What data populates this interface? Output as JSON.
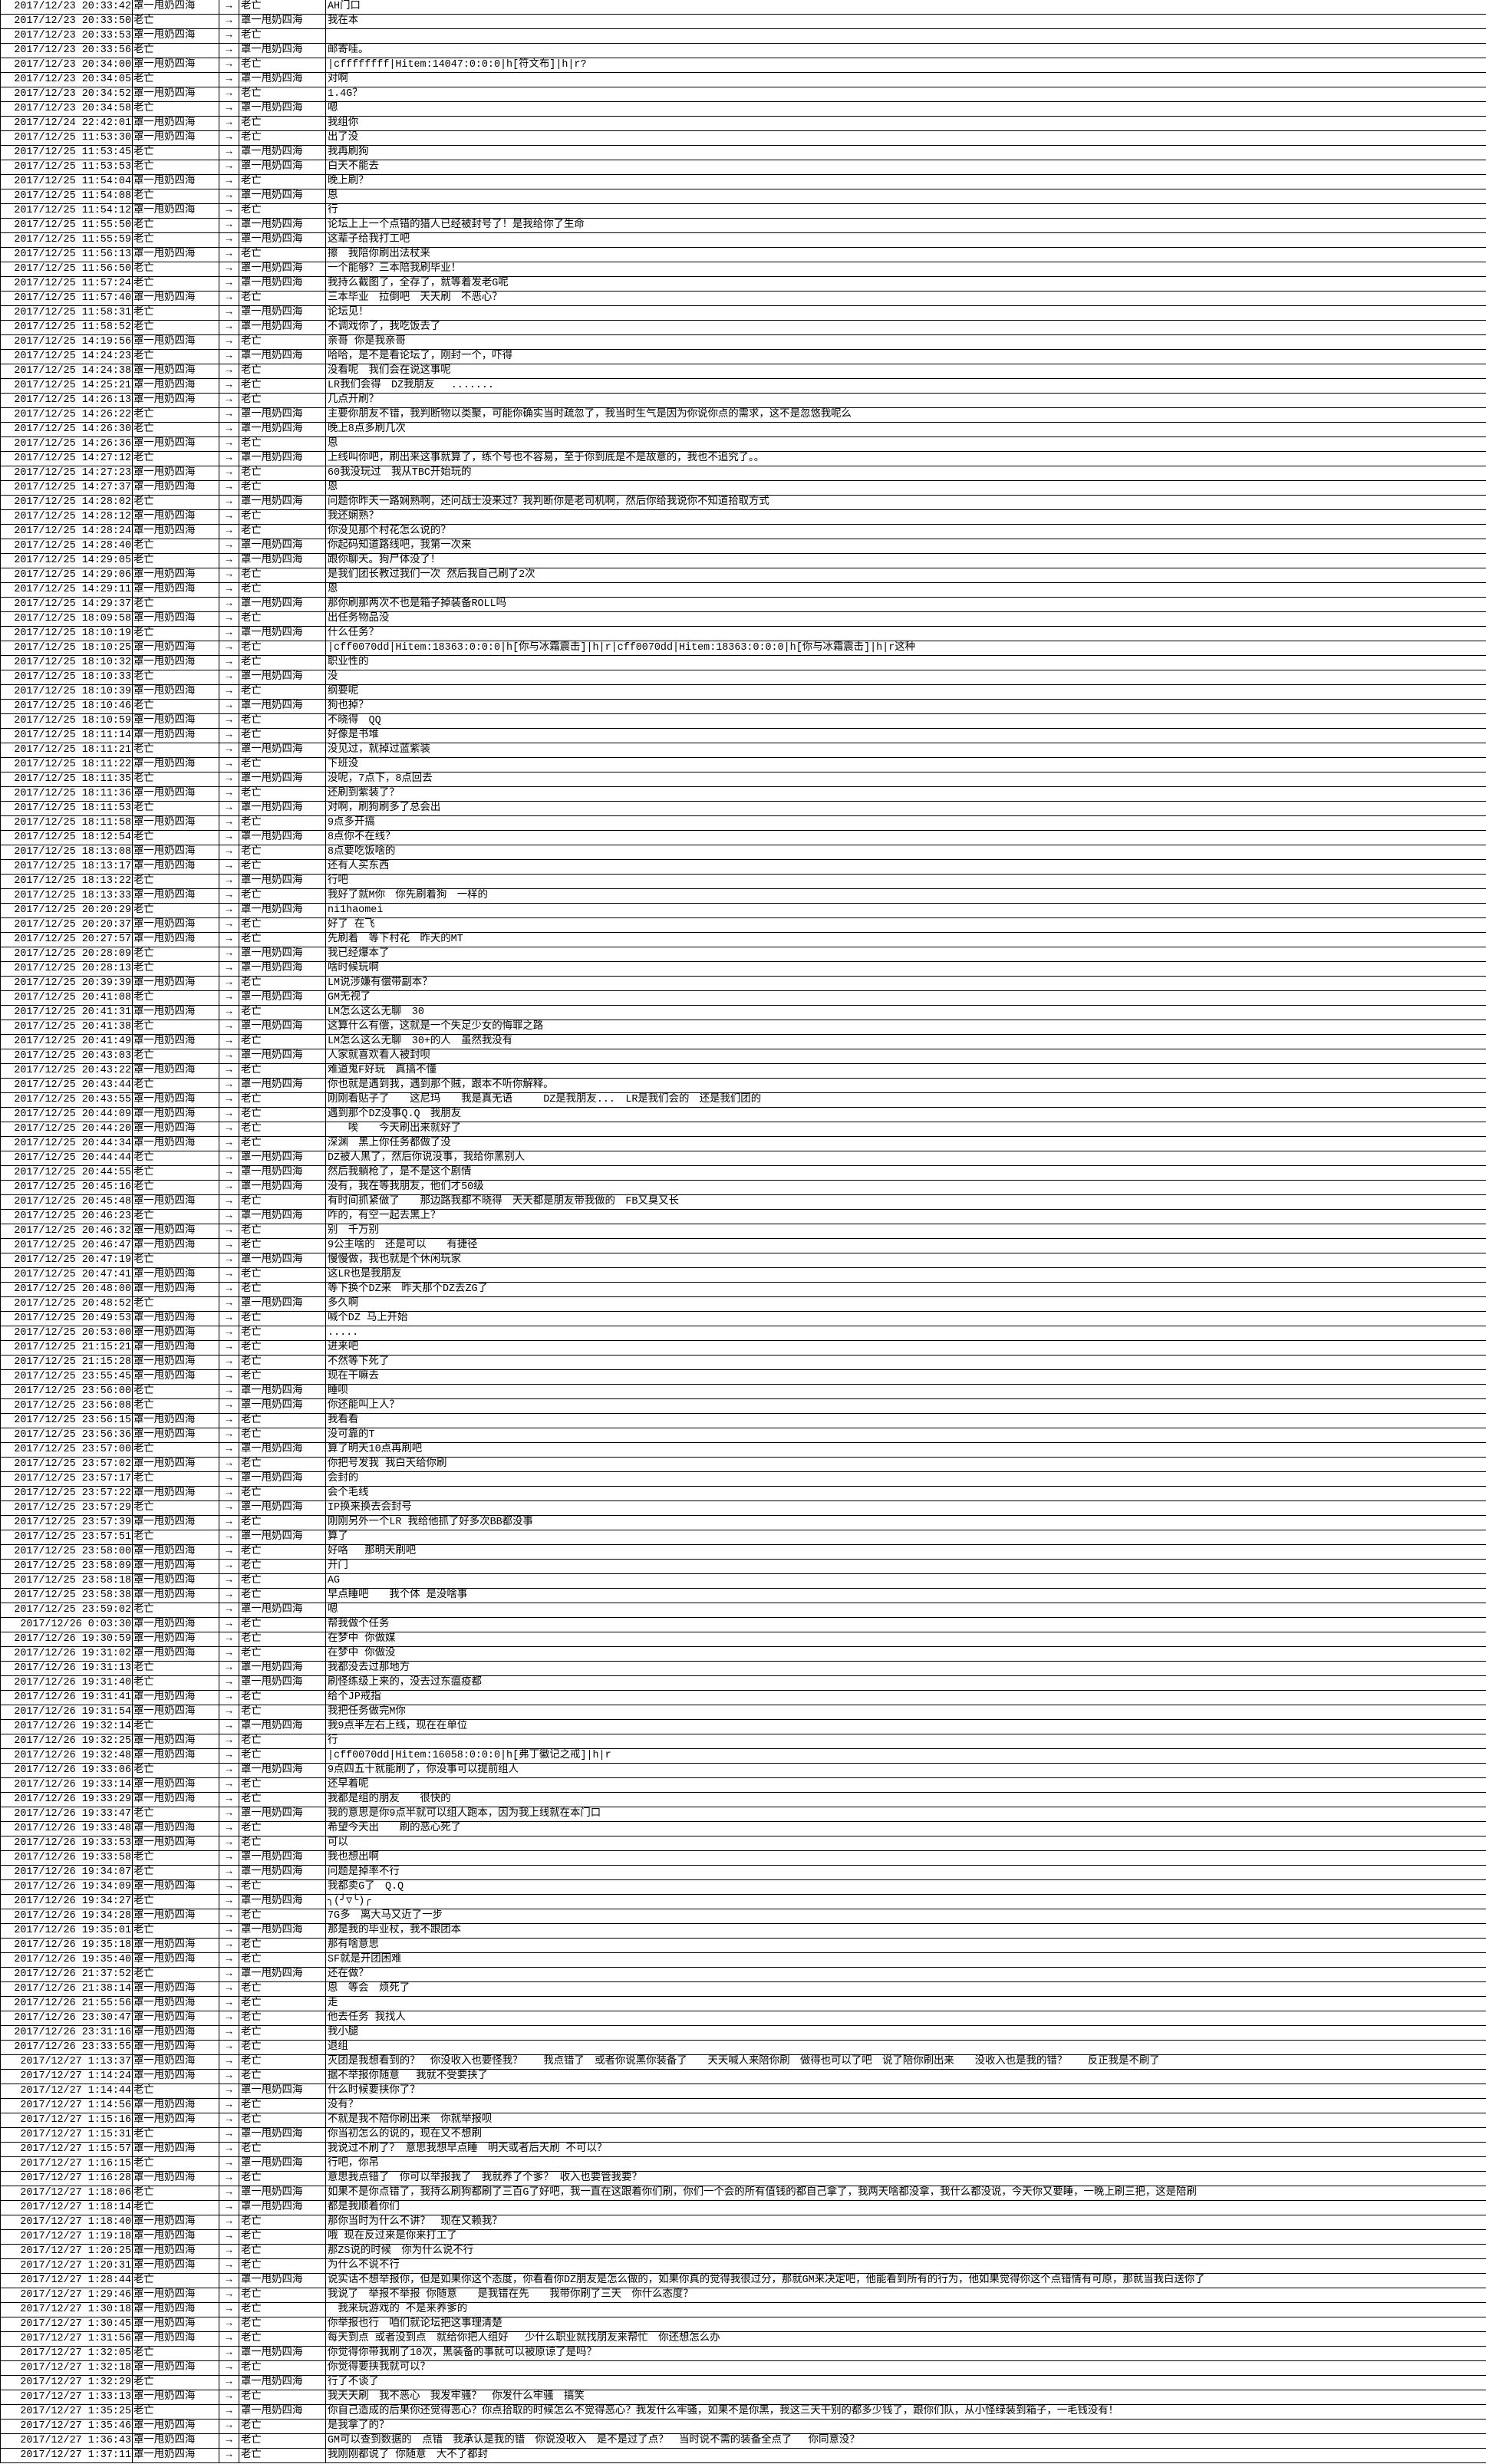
{
  "rows": [
    [
      "2017/12/23 20:33:42",
      "罩一甩奶四海",
      "→",
      "老亡",
      "AH门口"
    ],
    [
      "2017/12/23 20:33:50",
      "老亡",
      "→",
      "罩一甩奶四海",
      "我在本"
    ],
    [
      "2017/12/23 20:33:53",
      "罩一甩奶四海",
      "→",
      "老亡",
      ""
    ],
    [
      "2017/12/23 20:33:56",
      "老亡",
      "→",
      "罩一甩奶四海",
      "邮寄哇。"
    ],
    [
      "2017/12/23 20:34:00",
      "罩一甩奶四海",
      "→",
      "老亡",
      "|cffffffff|Hitem:14047:0:0:0|h[符文布]|h|r?"
    ],
    [
      "2017/12/23 20:34:05",
      "老亡",
      "→",
      "罩一甩奶四海",
      "对啊"
    ],
    [
      "2017/12/23 20:34:52",
      "罩一甩奶四海",
      "→",
      "老亡",
      "1.4G？"
    ],
    [
      "2017/12/23 20:34:58",
      "老亡",
      "→",
      "罩一甩奶四海",
      "嗯"
    ],
    [
      "2017/12/24 22:42:01",
      "罩一甩奶四海",
      "→",
      "老亡",
      "我组你"
    ],
    [
      "2017/12/25 11:53:30",
      "罩一甩奶四海",
      "→",
      "老亡",
      "出了没"
    ],
    [
      "2017/12/25 11:53:45",
      "老亡",
      "→",
      "罩一甩奶四海",
      "我再刷狗"
    ],
    [
      "2017/12/25 11:53:53",
      "老亡",
      "→",
      "罩一甩奶四海",
      "白天不能去"
    ],
    [
      "2017/12/25 11:54:04",
      "罩一甩奶四海",
      "→",
      "老亡",
      "晚上刷？"
    ],
    [
      "2017/12/25 11:54:08",
      "老亡",
      "→",
      "罩一甩奶四海",
      "恩"
    ],
    [
      "2017/12/25 11:54:12",
      "罩一甩奶四海",
      "→",
      "老亡",
      "行"
    ],
    [
      "2017/12/25 11:55:50",
      "老亡",
      "→",
      "罩一甩奶四海",
      "论坛上上一个点错的猎人已经被封号了！是我给你了生命"
    ],
    [
      "2017/12/25 11:55:59",
      "老亡",
      "→",
      "罩一甩奶四海",
      "这辈子给我打工吧"
    ],
    [
      "2017/12/25 11:56:13",
      "罩一甩奶四海",
      "→",
      "老亡",
      "擦　我陪你刷出法杖来"
    ],
    [
      "2017/12/25 11:56:50",
      "老亡",
      "→",
      "罩一甩奶四海",
      "一个能够？三本陪我刷毕业！"
    ],
    [
      "2017/12/25 11:57:24",
      "老亡",
      "→",
      "罩一甩奶四海",
      "我持么截图了，全存了，就等着发老G呢"
    ],
    [
      "2017/12/25 11:57:40",
      "罩一甩奶四海",
      "→",
      "老亡",
      "三本毕业　拉倒吧　天天刷　不恶心？"
    ],
    [
      "2017/12/25 11:58:31",
      "老亡",
      "→",
      "罩一甩奶四海",
      "论坛见！"
    ],
    [
      "2017/12/25 11:58:52",
      "老亡",
      "→",
      "罩一甩奶四海",
      "不调戏你了，我吃饭去了"
    ],
    [
      "2017/12/25 14:19:56",
      "罩一甩奶四海",
      "→",
      "老亡",
      "亲哥 你是我亲哥"
    ],
    [
      "2017/12/25 14:24:23",
      "老亡",
      "→",
      "罩一甩奶四海",
      "哈哈，是不是看论坛了，刚封一个，吓得"
    ],
    [
      "2017/12/25 14:24:38",
      "罩一甩奶四海",
      "→",
      "老亡",
      "没看呢　我们会在说这事呢"
    ],
    [
      "2017/12/25 14:25:21",
      "罩一甩奶四海",
      "→",
      "老亡",
      "LR我们会得　DZ我朋友　 ......."
    ],
    [
      "2017/12/25 14:26:13",
      "罩一甩奶四海",
      "→",
      "老亡",
      "几点开刷？"
    ],
    [
      "2017/12/25 14:26:22",
      "老亡",
      "→",
      "罩一甩奶四海",
      "主要你朋友不错，我判断物以类聚，可能你确实当时疏忽了，我当时生气是因为你说你点的需求，这不是忽悠我呢么"
    ],
    [
      "2017/12/25 14:26:30",
      "老亡",
      "→",
      "罩一甩奶四海",
      "晚上8点多刷几次"
    ],
    [
      "2017/12/25 14:26:36",
      "罩一甩奶四海",
      "→",
      "老亡",
      "恩"
    ],
    [
      "2017/12/25 14:27:12",
      "老亡",
      "→",
      "罩一甩奶四海",
      "上线叫你吧，刷出来这事就算了，练个号也不容易，至于你到底是不是故意的，我也不追究了。。"
    ],
    [
      "2017/12/25 14:27:23",
      "罩一甩奶四海",
      "→",
      "老亡",
      "60我没玩过　我从TBC开始玩的"
    ],
    [
      "2017/12/25 14:27:37",
      "罩一甩奶四海",
      "→",
      "老亡",
      "恩"
    ],
    [
      "2017/12/25 14:28:02",
      "老亡",
      "→",
      "罩一甩奶四海",
      "问题你昨天一路娴熟啊，还问战士没来过？我判断你是老司机啊，然后你给我说你不知道拾取方式"
    ],
    [
      "2017/12/25 14:28:12",
      "罩一甩奶四海",
      "→",
      "老亡",
      "我还娴熟？"
    ],
    [
      "2017/12/25 14:28:24",
      "罩一甩奶四海",
      "→",
      "老亡",
      "你没见那个村花怎么说的？"
    ],
    [
      "2017/12/25 14:28:40",
      "老亡",
      "→",
      "罩一甩奶四海",
      "你起码知道路线吧，我第一次来"
    ],
    [
      "2017/12/25 14:29:05",
      "老亡",
      "→",
      "罩一甩奶四海",
      "跟你聊天。狗尸体没了！"
    ],
    [
      "2017/12/25 14:29:06",
      "罩一甩奶四海",
      "→",
      "老亡",
      "是我们团长教过我们一次 然后我自己刷了2次"
    ],
    [
      "2017/12/25 14:29:11",
      "罩一甩奶四海",
      "→",
      "老亡",
      "恩"
    ],
    [
      "2017/12/25 14:29:37",
      "老亡",
      "→",
      "罩一甩奶四海",
      "那你刷那两次不也是箱子掉装备ROLL吗"
    ],
    [
      "2017/12/25 18:09:58",
      "罩一甩奶四海",
      "→",
      "老亡",
      "出任务物品没"
    ],
    [
      "2017/12/25 18:10:19",
      "老亡",
      "→",
      "罩一甩奶四海",
      "什么任务？"
    ],
    [
      "2017/12/25 18:10:25",
      "罩一甩奶四海",
      "→",
      "老亡",
      "|cff0070dd|Hitem:18363:0:0:0|h[你与冰霜震击]|h|r|cff0070dd|Hitem:18363:0:0:0|h[你与冰霜震击]|h|r这种"
    ],
    [
      "2017/12/25 18:10:32",
      "罩一甩奶四海",
      "→",
      "老亡",
      "职业性的"
    ],
    [
      "2017/12/25 18:10:33",
      "老亡",
      "→",
      "罩一甩奶四海",
      "没"
    ],
    [
      "2017/12/25 18:10:39",
      "罩一甩奶四海",
      "→",
      "老亡",
      "纲要呢"
    ],
    [
      "2017/12/25 18:10:46",
      "老亡",
      "→",
      "罩一甩奶四海",
      "狗也掉？"
    ],
    [
      "2017/12/25 18:10:59",
      "罩一甩奶四海",
      "→",
      "老亡",
      "不晓得　QQ"
    ],
    [
      "2017/12/25 18:11:14",
      "罩一甩奶四海",
      "→",
      "老亡",
      "好像是书堆"
    ],
    [
      "2017/12/25 18:11:21",
      "老亡",
      "→",
      "罩一甩奶四海",
      "没见过，就掉过蓝紫装"
    ],
    [
      "2017/12/25 18:11:22",
      "罩一甩奶四海",
      "→",
      "老亡",
      "下班没"
    ],
    [
      "2017/12/25 18:11:35",
      "老亡",
      "→",
      "罩一甩奶四海",
      "没呢，7点下，8点回去"
    ],
    [
      "2017/12/25 18:11:36",
      "罩一甩奶四海",
      "→",
      "老亡",
      "还刷到紫装了？"
    ],
    [
      "2017/12/25 18:11:53",
      "老亡",
      "→",
      "罩一甩奶四海",
      "对啊，刷狗刷多了总会出"
    ],
    [
      "2017/12/25 18:11:58",
      "罩一甩奶四海",
      "→",
      "老亡",
      "9点多开搞"
    ],
    [
      "2017/12/25 18:12:54",
      "老亡",
      "→",
      "罩一甩奶四海",
      "8点你不在线？"
    ],
    [
      "2017/12/25 18:13:08",
      "罩一甩奶四海",
      "→",
      "老亡",
      "8点要吃饭啥的"
    ],
    [
      "2017/12/25 18:13:17",
      "罩一甩奶四海",
      "→",
      "老亡",
      "还有人买东西"
    ],
    [
      "2017/12/25 18:13:22",
      "老亡",
      "→",
      "罩一甩奶四海",
      "行吧"
    ],
    [
      "2017/12/25 18:13:33",
      "罩一甩奶四海",
      "→",
      "老亡",
      "我好了就M你　你先刷着狗　一样的"
    ],
    [
      "2017/12/25 20:20:29",
      "老亡",
      "→",
      "罩一甩奶四海",
      "ni1haomei"
    ],
    [
      "2017/12/25 20:20:37",
      "罩一甩奶四海",
      "→",
      "老亡",
      "好了 在飞"
    ],
    [
      "2017/12/25 20:27:57",
      "罩一甩奶四海",
      "→",
      "老亡",
      "先刷着　等下村花　昨天的MT"
    ],
    [
      "2017/12/25 20:28:09",
      "老亡",
      "→",
      "罩一甩奶四海",
      "我已经爆本了"
    ],
    [
      "2017/12/25 20:28:13",
      "老亡",
      "→",
      "罩一甩奶四海",
      "啥时候玩啊"
    ],
    [
      "2017/12/25 20:39:39",
      "罩一甩奶四海",
      "→",
      "老亡",
      "LM说涉嫌有偿带副本？"
    ],
    [
      "2017/12/25 20:41:08",
      "老亡",
      "→",
      "罩一甩奶四海",
      "GM无视了"
    ],
    [
      "2017/12/25 20:41:31",
      "罩一甩奶四海",
      "→",
      "老亡",
      "LM怎么这么无聊　30"
    ],
    [
      "2017/12/25 20:41:38",
      "老亡",
      "→",
      "罩一甩奶四海",
      "这算什么有偿，这就是一个失足少女的悔罪之路"
    ],
    [
      "2017/12/25 20:41:49",
      "罩一甩奶四海",
      "→",
      "老亡",
      "LM怎么这么无聊　30+的人　虽然我没有"
    ],
    [
      "2017/12/25 20:43:03",
      "老亡",
      "→",
      "罩一甩奶四海",
      "人家就喜欢看人被封呗"
    ],
    [
      "2017/12/25 20:43:22",
      "罩一甩奶四海",
      "→",
      "老亡",
      "难道鬼F好玩　真搞不懂"
    ],
    [
      "2017/12/25 20:43:44",
      "老亡",
      "→",
      "罩一甩奶四海",
      "你也就是遇到我，遇到那个贼，跟本不听你解释。"
    ],
    [
      "2017/12/25 20:43:55",
      "罩一甩奶四海",
      "→",
      "老亡",
      "刚刚看贴子了　　这尼玛　　我是真无语　　　DZ是我朋友...　LR是我们会的　还是我们团的"
    ],
    [
      "2017/12/25 20:44:09",
      "罩一甩奶四海",
      "→",
      "老亡",
      "遇到那个DZ没事Q.Q　我朋友"
    ],
    [
      "2017/12/25 20:44:20",
      "罩一甩奶四海",
      "→",
      "老亡",
      "　　唉　　今天刷出来就好了"
    ],
    [
      "2017/12/25 20:44:34",
      "罩一甩奶四海",
      "→",
      "老亡",
      "深渊　黑上你任务都做了没"
    ],
    [
      "2017/12/25 20:44:44",
      "老亡",
      "→",
      "罩一甩奶四海",
      "DZ被人黑了，然后你说没事，我给你黑别人"
    ],
    [
      "2017/12/25 20:44:55",
      "老亡",
      "→",
      "罩一甩奶四海",
      "然后我躺枪了，是不是这个剧情"
    ],
    [
      "2017/12/25 20:45:16",
      "老亡",
      "→",
      "罩一甩奶四海",
      "没有，我在等我朋友，他们才50级"
    ],
    [
      "2017/12/25 20:45:48",
      "罩一甩奶四海",
      "→",
      "老亡",
      "有时间抓紧做了　　那边路我都不晓得　天天都是朋友带我做的　FB又臭又长"
    ],
    [
      "2017/12/25 20:46:23",
      "老亡",
      "→",
      "罩一甩奶四海",
      "咋的，有空一起去黑上？"
    ],
    [
      "2017/12/25 20:46:32",
      "罩一甩奶四海",
      "→",
      "老亡",
      "别　千万别"
    ],
    [
      "2017/12/25 20:46:47",
      "罩一甩奶四海",
      "→",
      "老亡",
      "9公主啥的　还是可以　　有捷径"
    ],
    [
      "2017/12/25 20:47:19",
      "老亡",
      "→",
      "罩一甩奶四海",
      "慢慢做，我也就是个休闲玩家"
    ],
    [
      "2017/12/25 20:47:41",
      "罩一甩奶四海",
      "→",
      "老亡",
      "这LR也是我朋友"
    ],
    [
      "2017/12/25 20:48:00",
      "罩一甩奶四海",
      "→",
      "老亡",
      "等下换个DZ来　昨天那个DZ去ZG了"
    ],
    [
      "2017/12/25 20:48:52",
      "老亡",
      "→",
      "罩一甩奶四海",
      "多久啊"
    ],
    [
      "2017/12/25 20:49:53",
      "罩一甩奶四海",
      "→",
      "老亡",
      "喊个DZ 马上开始"
    ],
    [
      "2017/12/25 20:53:00",
      "罩一甩奶四海",
      "→",
      "老亡",
      "....."
    ],
    [
      "2017/12/25 21:15:21",
      "罩一甩奶四海",
      "→",
      "老亡",
      "进来吧"
    ],
    [
      "2017/12/25 21:15:28",
      "罩一甩奶四海",
      "→",
      "老亡",
      "不然等下死了"
    ],
    [
      "2017/12/25 23:55:45",
      "罩一甩奶四海",
      "→",
      "老亡",
      "现在干嘛去"
    ],
    [
      "2017/12/25 23:56:00",
      "老亡",
      "→",
      "罩一甩奶四海",
      "睡呗"
    ],
    [
      "2017/12/25 23:56:08",
      "老亡",
      "→",
      "罩一甩奶四海",
      "你还能叫上人？"
    ],
    [
      "2017/12/25 23:56:15",
      "罩一甩奶四海",
      "→",
      "老亡",
      "我看看"
    ],
    [
      "2017/12/25 23:56:36",
      "罩一甩奶四海",
      "→",
      "老亡",
      "没可靠的T"
    ],
    [
      "2017/12/25 23:57:00",
      "老亡",
      "→",
      "罩一甩奶四海",
      "算了明天10点再刷吧"
    ],
    [
      "2017/12/25 23:57:02",
      "罩一甩奶四海",
      "→",
      "老亡",
      "你把号发我 我白天给你刷"
    ],
    [
      "2017/12/25 23:57:17",
      "老亡",
      "→",
      "罩一甩奶四海",
      "会封的"
    ],
    [
      "2017/12/25 23:57:22",
      "罩一甩奶四海",
      "→",
      "老亡",
      "会个毛线"
    ],
    [
      "2017/12/25 23:57:29",
      "老亡",
      "→",
      "罩一甩奶四海",
      "IP换来换去会封号"
    ],
    [
      "2017/12/25 23:57:39",
      "罩一甩奶四海",
      "→",
      "老亡",
      "刚刚另外一个LR 我给他抓了好多次BB都没事"
    ],
    [
      "2017/12/25 23:57:51",
      "老亡",
      "→",
      "罩一甩奶四海",
      "算了"
    ],
    [
      "2017/12/25 23:58:00",
      "罩一甩奶四海",
      "→",
      "老亡",
      "好咯　 那明天刷吧"
    ],
    [
      "2017/12/25 23:58:09",
      "罩一甩奶四海",
      "→",
      "老亡",
      "开门"
    ],
    [
      "2017/12/25 23:58:18",
      "罩一甩奶四海",
      "→",
      "老亡",
      "AG"
    ],
    [
      "2017/12/25 23:58:38",
      "罩一甩奶四海",
      "→",
      "老亡",
      "早点睡吧　　我个体 是没啥事"
    ],
    [
      "2017/12/25 23:59:02",
      "老亡",
      "→",
      "罩一甩奶四海",
      "嗯"
    ],
    [
      "2017/12/26 0:03:30",
      "罩一甩奶四海",
      "→",
      "老亡",
      "帮我做个任务"
    ],
    [
      "2017/12/26 19:30:59",
      "罩一甩奶四海",
      "→",
      "老亡",
      "在梦中 你做媒"
    ],
    [
      "2017/12/26 19:31:02",
      "罩一甩奶四海",
      "→",
      "老亡",
      "在梦中 你做没"
    ],
    [
      "2017/12/26 19:31:13",
      "老亡",
      "→",
      "罩一甩奶四海",
      "我都没去过那地方"
    ],
    [
      "2017/12/26 19:31:40",
      "老亡",
      "→",
      "罩一甩奶四海",
      "刷怪练级上来的，没去过东瘟疫都"
    ],
    [
      "2017/12/26 19:31:41",
      "罩一甩奶四海",
      "→",
      "老亡",
      "给个JP戒指"
    ],
    [
      "2017/12/26 19:31:54",
      "罩一甩奶四海",
      "→",
      "老亡",
      "我把任务做完M你"
    ],
    [
      "2017/12/26 19:32:14",
      "老亡",
      "→",
      "罩一甩奶四海",
      "我9点半左右上线，现在在单位"
    ],
    [
      "2017/12/26 19:32:25",
      "罩一甩奶四海",
      "→",
      "老亡",
      "行"
    ],
    [
      "2017/12/26 19:32:48",
      "罩一甩奶四海",
      "→",
      "老亡",
      "|cff0070dd|Hitem:16058:0:0:0|h[弗丁徽记之戒]|h|r"
    ],
    [
      "2017/12/26 19:33:06",
      "老亡",
      "→",
      "罩一甩奶四海",
      "9点四五十就能刷了，你没事可以提前组人"
    ],
    [
      "2017/12/26 19:33:14",
      "罩一甩奶四海",
      "→",
      "老亡",
      "还早着呢"
    ],
    [
      "2017/12/26 19:33:29",
      "罩一甩奶四海",
      "→",
      "老亡",
      "我都是组的朋友　　很快的"
    ],
    [
      "2017/12/26 19:33:47",
      "老亡",
      "→",
      "罩一甩奶四海",
      "我的意思是你9点半就可以组人跑本，因为我上线就在本门口"
    ],
    [
      "2017/12/26 19:33:48",
      "罩一甩奶四海",
      "→",
      "老亡",
      "希望今天出　　刷的恶心死了"
    ],
    [
      "2017/12/26 19:33:53",
      "罩一甩奶四海",
      "→",
      "老亡",
      "可以"
    ],
    [
      "2017/12/26 19:33:58",
      "老亡",
      "→",
      "罩一甩奶四海",
      "我也想出啊"
    ],
    [
      "2017/12/26 19:34:07",
      "老亡",
      "→",
      "罩一甩奶四海",
      "问题是掉率不行"
    ],
    [
      "2017/12/26 19:34:09",
      "罩一甩奶四海",
      "→",
      "老亡",
      "我都卖G了　Q.Q"
    ],
    [
      "2017/12/26 19:34:27",
      "老亡",
      "→",
      "罩一甩奶四海",
      "╮(╯▽╰)╭"
    ],
    [
      "2017/12/26 19:34:28",
      "罩一甩奶四海",
      "→",
      "老亡",
      "7G多　离大马又近了一步"
    ],
    [
      "2017/12/26 19:35:01",
      "老亡",
      "→",
      "罩一甩奶四海",
      "那是我的毕业杖，我不跟团本"
    ],
    [
      "2017/12/26 19:35:18",
      "罩一甩奶四海",
      "→",
      "老亡",
      "那有啥意思"
    ],
    [
      "2017/12/26 19:35:40",
      "罩一甩奶四海",
      "→",
      "老亡",
      "SF就是开团困难"
    ],
    [
      "2017/12/26 21:37:52",
      "老亡",
      "→",
      "罩一甩奶四海",
      "还在做？"
    ],
    [
      "2017/12/26 21:38:14",
      "罩一甩奶四海",
      "→",
      "老亡",
      "恩　等会　烦死了"
    ],
    [
      "2017/12/26 21:55:56",
      "罩一甩奶四海",
      "→",
      "老亡",
      "走"
    ],
    [
      "2017/12/26 23:30:47",
      "罩一甩奶四海",
      "→",
      "老亡",
      "他去任务 我找人"
    ],
    [
      "2017/12/26 23:31:16",
      "罩一甩奶四海",
      "→",
      "老亡",
      "我小腿"
    ],
    [
      "2017/12/26 23:33:55",
      "罩一甩奶四海",
      "→",
      "老亡",
      "退组"
    ],
    [
      "2017/12/27 1:13:37",
      "罩一甩奶四海",
      "→",
      "老亡",
      "灭团是我想看到的？　你没收入也要怪我？　　我点错了　或者你说黑你装备了　　天天喊人来陪你刷　做得也可以了吧　说了陪你刷出来　　没收入也是我的错？　　反正我是不刷了"
    ],
    [
      "2017/12/27 1:14:24",
      "罩一甩奶四海",
      "→",
      "老亡",
      "据不举报你随意　 我就不受要挟了"
    ],
    [
      "2017/12/27 1:14:44",
      "老亡",
      "→",
      "罩一甩奶四海",
      "什么时候要挟你了？"
    ],
    [
      "2017/12/27 1:14:56",
      "罩一甩奶四海",
      "→",
      "老亡",
      "没有？"
    ],
    [
      "2017/12/27 1:15:16",
      "罩一甩奶四海",
      "→",
      "老亡",
      "不就是我不陪你刷出来　你就举报呗"
    ],
    [
      "2017/12/27 1:15:31",
      "老亡",
      "→",
      "罩一甩奶四海",
      "你当初怎么的说的，现在又不想刷"
    ],
    [
      "2017/12/27 1:15:57",
      "罩一甩奶四海",
      "→",
      "老亡",
      "我说过不刷了？ 意思我想早点睡　明天或者后天刷 不可以？"
    ],
    [
      "2017/12/27 1:16:15",
      "老亡",
      "→",
      "罩一甩奶四海",
      "行吧，你吊"
    ],
    [
      "2017/12/27 1:16:28",
      "罩一甩奶四海",
      "→",
      "老亡",
      "意思我点错了　你可以举报我了　我就养了个爹？ 收入也要管我要？"
    ],
    [
      "2017/12/27 1:18:06",
      "老亡",
      "→",
      "罩一甩奶四海",
      "如果不是你点错了，我持么刷狗都刷了三百G了好吧，我一直在这跟着你们刷，你们一个会的所有值钱的都自己拿了，我两天啥都没拿，我什么都没说，今天你又要睡，一晚上刷三把，这是陪刷"
    ],
    [
      "2017/12/27 1:18:14",
      "老亡",
      "→",
      "罩一甩奶四海",
      "都是我顺着你们"
    ],
    [
      "2017/12/27 1:18:40",
      "罩一甩奶四海",
      "→",
      "老亡",
      "那你当时为什么不讲？　现在又赖我？"
    ],
    [
      "2017/12/27 1:19:18",
      "罩一甩奶四海",
      "→",
      "老亡",
      "哦 现在反过来是你来打工了"
    ],
    [
      "2017/12/27 1:20:25",
      "罩一甩奶四海",
      "→",
      "老亡",
      "那ZS说的时候　你为什么说不行"
    ],
    [
      "2017/12/27 1:20:31",
      "罩一甩奶四海",
      "→",
      "老亡",
      "为什么不说不行"
    ],
    [
      "2017/12/27 1:28:44",
      "老亡",
      "→",
      "罩一甩奶四海",
      "说实话不想举报你，但是如果你这个态度，你看看你DZ朋友是怎么做的，如果你真的觉得我很过分，那就GM来决定吧，他能看到所有的行为，他如果觉得你这个点错情有可原，那就当我白送你了"
    ],
    [
      "2017/12/27 1:29:46",
      "罩一甩奶四海",
      "→",
      "老亡",
      "我说了　举报不举报 你随意　　是我错在先　　我带你刷了三天　你什么态度？"
    ],
    [
      "2017/12/27 1:30:18",
      "罩一甩奶四海",
      "→",
      "老亡",
      "　我来玩游戏的 不是来养爹的"
    ],
    [
      "2017/12/27 1:30:45",
      "罩一甩奶四海",
      "→",
      "老亡",
      "你举报也行　咱们就论坛把这事理清楚"
    ],
    [
      "2017/12/27 1:31:56",
      "罩一甩奶四海",
      "→",
      "老亡",
      "每天到点 或者没到点　就给你把人组好　 少什么职业就找朋友来帮忙　你还想怎么办"
    ],
    [
      "2017/12/27 1:32:05",
      "老亡",
      "→",
      "罩一甩奶四海",
      "你觉得你带我刷了10次，黑装备的事就可以被原谅了是吗？"
    ],
    [
      "2017/12/27 1:32:18",
      "罩一甩奶四海",
      "→",
      "老亡",
      "你觉得要挟我就可以？"
    ],
    [
      "2017/12/27 1:32:29",
      "老亡",
      "→",
      "罩一甩奶四海",
      "行了不谈了"
    ],
    [
      "2017/12/27 1:33:13",
      "罩一甩奶四海",
      "→",
      "老亡",
      "我天天刷　我不恶心　我发牢骚？　你发什么牢骚　搞笑"
    ],
    [
      "2017/12/27 1:35:25",
      "老亡",
      "→",
      "罩一甩奶四海",
      "你自己造成的后果你还觉得恶心？你点拾取的时候怎么不觉得恶心？我发什么牢骚，如果不是你黑，我这三天干别的都多少钱了，跟你们队，从小怪绿装到箱子，一毛钱没有！"
    ],
    [
      "2017/12/27 1:35:46",
      "罩一甩奶四海",
      "→",
      "老亡",
      "是我拿了的？"
    ],
    [
      "2017/12/27 1:36:43",
      "罩一甩奶四海",
      "→",
      "老亡",
      "GM可以查到数据的　点错　我承认是我的错　你说没收入　是不是过了点？　当时说不需的装备全点了　 你同意没？"
    ],
    [
      "2017/12/27 1:37:11",
      "罩一甩奶四海",
      "→",
      "老亡",
      "我刚刚都说了 你随意　大不了都封"
    ]
  ]
}
